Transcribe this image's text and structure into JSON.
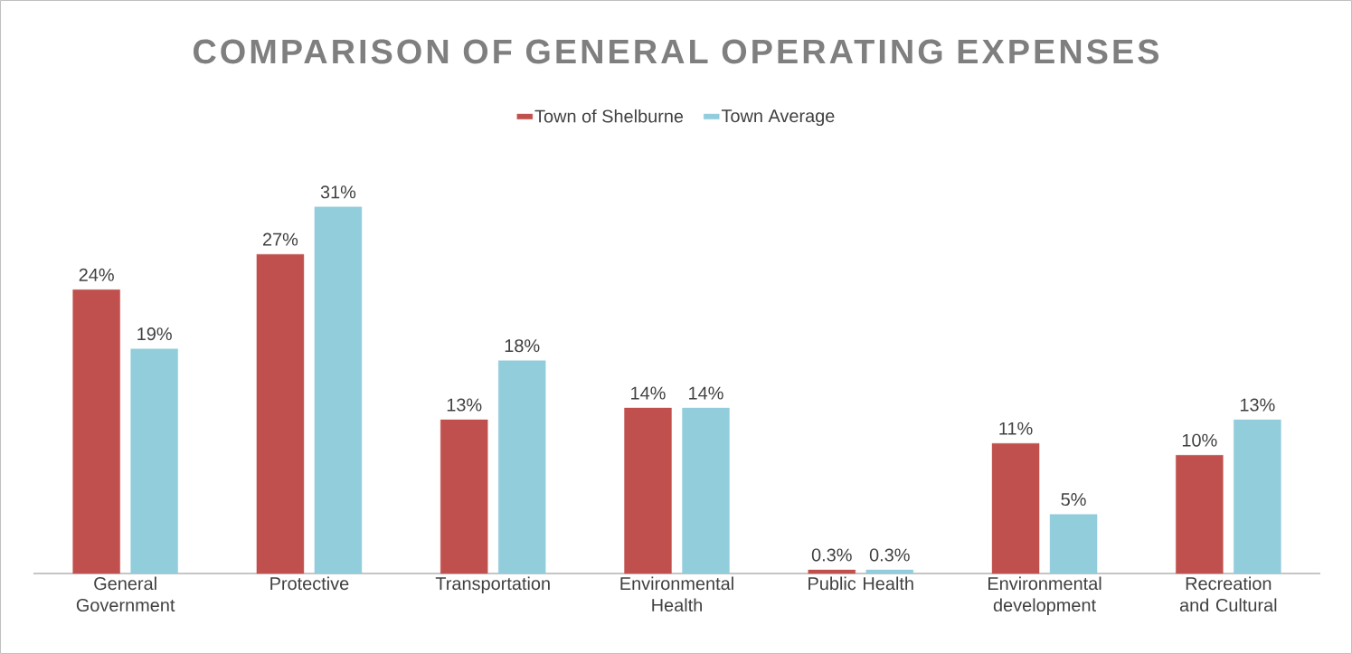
{
  "chart_data": {
    "type": "bar",
    "title": "COMPARISON OF GENERAL OPERATING EXPENSES",
    "categories": [
      "General Government",
      "Protective",
      "Transportation",
      "Environmental Health",
      "Public Health",
      "Environmental development",
      "Recreation and Cultural"
    ],
    "series": [
      {
        "name": "Town of Shelburne",
        "color": "#c0504d",
        "values": [
          24,
          27,
          13,
          14,
          0.3,
          11,
          10
        ],
        "value_labels": [
          "24%",
          "27%",
          "13%",
          "14%",
          "0.3%",
          "11%",
          "10%"
        ]
      },
      {
        "name": "Town Average",
        "color": "#92cddc",
        "values": [
          19,
          31,
          18,
          14,
          0.3,
          5,
          13
        ],
        "value_labels": [
          "19%",
          "31%",
          "18%",
          "14%",
          "0.3%",
          "5%",
          "13%"
        ]
      }
    ],
    "legend": "top"
  }
}
